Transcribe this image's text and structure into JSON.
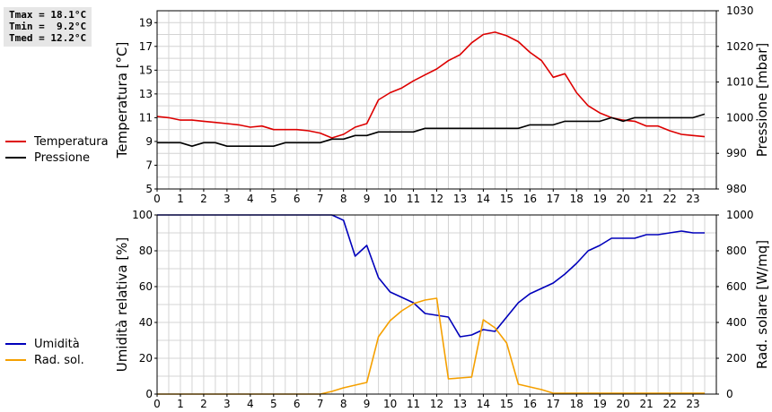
{
  "stats": {
    "tmax": "Tmax = 18.1°C",
    "tmin": "Tmin =  9.2°C",
    "tmed": "Tmed = 12.2°C"
  },
  "colors": {
    "temperature": "#dd0000",
    "pressure": "#000000",
    "humidity": "#0000bb",
    "solar": "#f5a000",
    "grid": "#d4d4d4",
    "background": "#ffffff",
    "stats_box": "#e6e6e6"
  },
  "chart_data": [
    {
      "type": "line",
      "grid": true,
      "legend_placement": "left",
      "x_ticks": [
        "0",
        "1",
        "2",
        "3",
        "4",
        "5",
        "6",
        "7",
        "8",
        "9",
        "10",
        "11",
        "12",
        "13",
        "14",
        "15",
        "16",
        "17",
        "18",
        "19",
        "20",
        "21",
        "22",
        "23"
      ],
      "xlim": [
        0,
        24
      ],
      "ylabel": "Temperatura [°C]",
      "ylabel_right": "Pressione [mbar]",
      "ylim": [
        5,
        20
      ],
      "ylim_right": [
        980,
        1030
      ],
      "y_ticks": [
        5,
        7,
        9,
        11,
        13,
        15,
        17,
        19
      ],
      "y_ticks_right": [
        980,
        990,
        1000,
        1010,
        1020,
        1030
      ],
      "series": [
        {
          "name": "Temperatura",
          "axis": "left",
          "x": [
            0,
            0.5,
            1,
            1.5,
            2,
            2.5,
            3,
            3.5,
            4,
            4.5,
            5,
            5.5,
            6,
            6.5,
            7,
            7.5,
            8,
            8.5,
            9,
            9.5,
            10,
            10.5,
            11,
            11.5,
            12,
            12.5,
            13,
            13.5,
            14,
            14.5,
            15,
            15.5,
            16,
            16.5,
            17,
            17.5,
            18,
            18.5,
            19,
            19.5,
            20,
            20.5,
            21,
            21.5,
            22,
            22.5,
            23,
            23.5
          ],
          "values": [
            11.1,
            11.0,
            10.8,
            10.8,
            10.7,
            10.6,
            10.5,
            10.4,
            10.2,
            10.3,
            10.0,
            10.0,
            10.0,
            9.9,
            9.7,
            9.3,
            9.6,
            10.2,
            10.5,
            12.5,
            13.1,
            13.5,
            14.1,
            14.6,
            15.1,
            15.8,
            16.3,
            17.3,
            18.0,
            18.2,
            17.9,
            17.4,
            16.5,
            15.8,
            14.4,
            14.7,
            13.1,
            12.0,
            11.4,
            11.0,
            10.8,
            10.7,
            10.3,
            10.3,
            9.9,
            9.6,
            9.5,
            9.4
          ]
        },
        {
          "name": "Pressione",
          "axis": "right",
          "x": [
            0,
            0.5,
            1,
            1.5,
            2,
            2.5,
            3,
            3.5,
            4,
            4.5,
            5,
            5.5,
            6,
            6.5,
            7,
            7.5,
            8,
            8.5,
            9,
            9.5,
            10,
            10.5,
            11,
            11.5,
            12,
            12.5,
            13,
            13.5,
            14,
            14.5,
            15,
            15.5,
            16,
            16.5,
            17,
            17.5,
            18,
            18.5,
            19,
            19.5,
            20,
            20.5,
            21,
            21.5,
            22,
            22.5,
            23,
            23.5
          ],
          "values": [
            993,
            993,
            993,
            992,
            993,
            993,
            992,
            992,
            992,
            992,
            992,
            993,
            993,
            993,
            993,
            994,
            994,
            995,
            995,
            996,
            996,
            996,
            996,
            997,
            997,
            997,
            997,
            997,
            997,
            997,
            997,
            997,
            998,
            998,
            998,
            999,
            999,
            999,
            999,
            1000,
            999,
            1000,
            1000,
            1000,
            1000,
            1000,
            1000,
            1001
          ]
        }
      ]
    },
    {
      "type": "line",
      "grid": true,
      "legend_placement": "left",
      "x_ticks": [
        "0",
        "1",
        "2",
        "3",
        "4",
        "5",
        "6",
        "7",
        "8",
        "9",
        "10",
        "11",
        "12",
        "13",
        "14",
        "15",
        "16",
        "17",
        "18",
        "19",
        "20",
        "21",
        "22",
        "23"
      ],
      "xlim": [
        0,
        24
      ],
      "ylabel": "Umidità relativa [%]",
      "ylabel_right": "Rad. solare [W/mq]",
      "ylim": [
        0,
        100
      ],
      "ylim_right": [
        0,
        1000
      ],
      "y_ticks": [
        0,
        20,
        40,
        60,
        80,
        100
      ],
      "y_ticks_right": [
        0,
        200,
        400,
        600,
        800,
        1000
      ],
      "series": [
        {
          "name": "Umidità",
          "axis": "left",
          "x": [
            0,
            0.5,
            1,
            1.5,
            2,
            2.5,
            3,
            3.5,
            4,
            4.5,
            5,
            5.5,
            6,
            6.5,
            7,
            7.5,
            8,
            8.5,
            9,
            9.5,
            10,
            10.5,
            11,
            11.5,
            12,
            12.5,
            13,
            13.5,
            14,
            14.5,
            15,
            15.5,
            16,
            16.5,
            17,
            17.5,
            18,
            18.5,
            19,
            19.5,
            20,
            20.5,
            21,
            21.5,
            22,
            22.5,
            23,
            23.5
          ],
          "values": [
            100,
            100,
            100,
            100,
            100,
            100,
            100,
            100,
            100,
            100,
            100,
            100,
            100,
            100,
            100,
            100,
            97,
            77,
            83,
            65,
            57,
            54,
            51,
            45,
            44,
            43,
            32,
            33,
            36,
            35,
            43,
            51,
            56,
            59,
            62,
            67,
            73,
            80,
            83,
            87,
            87,
            87,
            89,
            89,
            90,
            91,
            90,
            90
          ]
        },
        {
          "name": "Rad. sol.",
          "axis": "right",
          "x": [
            0,
            0.5,
            1,
            1.5,
            2,
            2.5,
            3,
            3.5,
            4,
            4.5,
            5,
            5.5,
            6,
            6.5,
            7,
            7.5,
            8,
            8.5,
            9,
            9.5,
            10,
            10.5,
            11,
            11.5,
            12,
            12.5,
            13,
            13.5,
            14,
            14.5,
            15,
            15.5,
            16,
            16.5,
            17,
            17.5,
            18,
            18.5,
            19,
            19.5,
            20,
            20.5,
            21,
            21.5,
            22,
            22.5,
            23,
            23.5
          ],
          "values": [
            0,
            0,
            0,
            0,
            0,
            0,
            0,
            0,
            0,
            0,
            0,
            0,
            0,
            0,
            0,
            15,
            35,
            50,
            65,
            320,
            410,
            465,
            505,
            525,
            535,
            85,
            90,
            95,
            415,
            370,
            285,
            55,
            40,
            25,
            5,
            5,
            5,
            5,
            5,
            5,
            5,
            5,
            5,
            5,
            5,
            5,
            5,
            5
          ]
        }
      ]
    }
  ]
}
